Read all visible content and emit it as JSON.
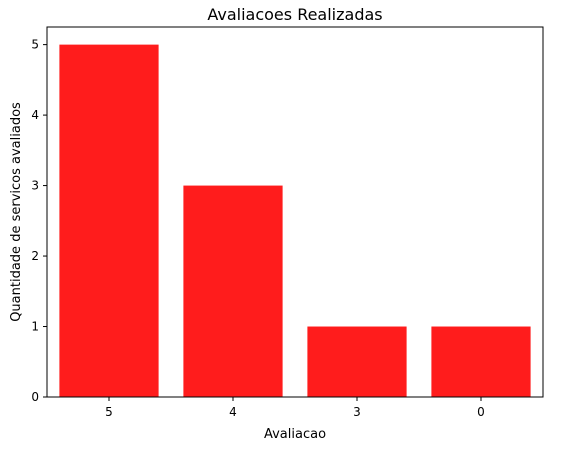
{
  "chart_data": {
    "type": "bar",
    "title": "Avaliacoes Realizadas",
    "xlabel": "Avaliacao",
    "ylabel": "Quantidade de servicos avaliados",
    "categories": [
      "5",
      "4",
      "3",
      "0"
    ],
    "values": [
      5,
      3,
      1,
      1
    ],
    "ylim": [
      0,
      5.25
    ],
    "yticks": [
      0,
      1,
      2,
      3,
      4,
      5
    ],
    "bar_color": "#ff1c1c",
    "grid": false,
    "legend": "none"
  }
}
